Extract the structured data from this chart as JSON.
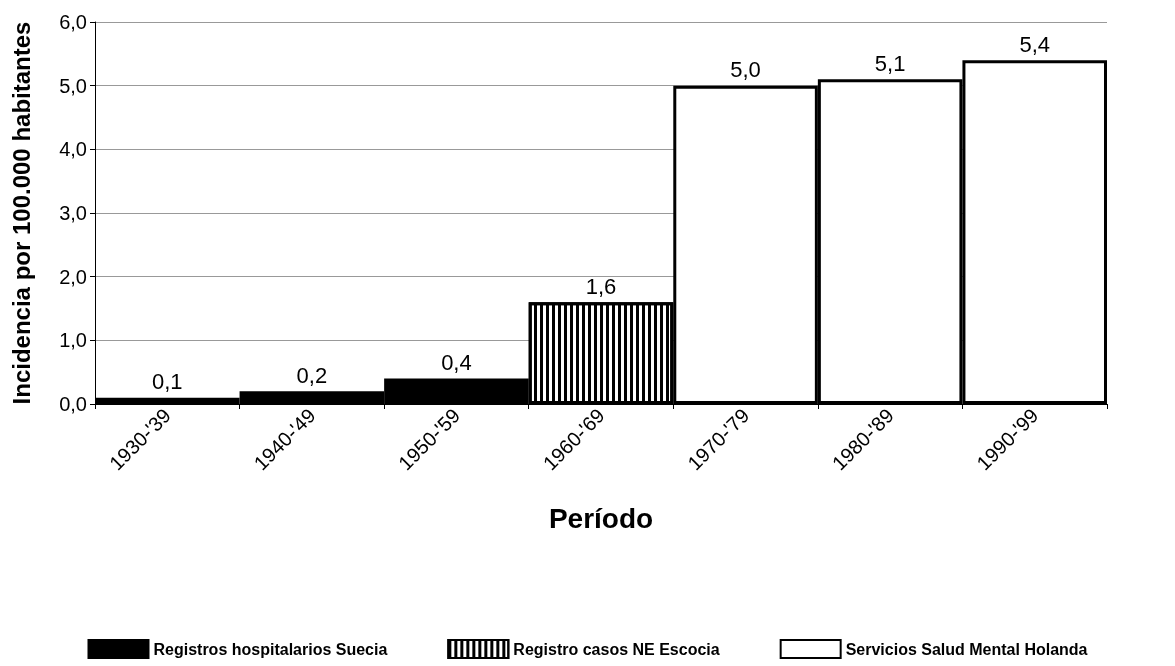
{
  "chart_data": {
    "type": "bar",
    "xlabel": "Período",
    "ylabel": "Incidencia por 100.000 habitantes",
    "categories": [
      "1930-'39",
      "1940-'49",
      "1950-'59",
      "1960-'69",
      "1970-'79",
      "1980-'89",
      "1990-'99"
    ],
    "series": [
      {
        "name": "Registros hospitalarios Suecia",
        "color": "#000000",
        "values": [
          0.1,
          0.2,
          0.4,
          null,
          null,
          null,
          null
        ],
        "value_labels": [
          "0,1",
          "0,2",
          "0,4",
          null,
          null,
          null,
          null
        ]
      },
      {
        "name": "Registro casos NE Escocia",
        "color": "#ffffff",
        "values": [
          null,
          null,
          null,
          1.6,
          null,
          null,
          null
        ],
        "value_labels": [
          null,
          null,
          null,
          "1,6",
          null,
          null,
          null
        ]
      },
      {
        "name": "Servicios Salud Mental Holanda",
        "color": "#ffffff",
        "values": [
          null,
          null,
          null,
          null,
          5.0,
          5.1,
          5.4
        ],
        "value_labels": [
          null,
          null,
          null,
          null,
          "5,0",
          "5,1",
          "5,4"
        ]
      }
    ],
    "stacked": true,
    "ylim": [
      0,
      6
    ],
    "yticks": [
      {
        "value": 0,
        "label": "0,0"
      },
      {
        "value": 1,
        "label": "1,0"
      },
      {
        "value": 2,
        "label": "2,0"
      },
      {
        "value": 3,
        "label": "3,0"
      },
      {
        "value": 4,
        "label": "4,0"
      },
      {
        "value": 5,
        "label": "5,0"
      },
      {
        "value": 6,
        "label": "6,0"
      }
    ],
    "grid": "y",
    "legend": "bottom"
  }
}
